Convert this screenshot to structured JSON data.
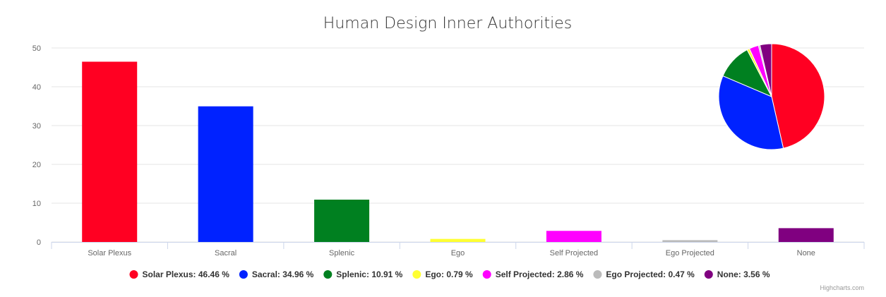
{
  "chart_data": {
    "type": "bar",
    "title": "Human Design Inner Authorities",
    "categories": [
      "Solar Plexus",
      "Sacral",
      "Splenic",
      "Ego",
      "Self Projected",
      "Ego Projected",
      "None"
    ],
    "values": [
      46.46,
      34.96,
      10.91,
      0.79,
      2.86,
      0.47,
      3.56
    ],
    "colors": [
      "#ff0022",
      "#0022ff",
      "#008020",
      "#ffff33",
      "#ff00ff",
      "#bbbbbb",
      "#800080"
    ],
    "ylim": [
      0,
      50
    ],
    "yticks": [
      0,
      10,
      20,
      30,
      40,
      50
    ],
    "xlabel": "",
    "ylabel": "",
    "grid": true,
    "legend": {
      "placement": "bottom",
      "entries": [
        "Solar Plexus: 46.46 %",
        "Sacral: 34.96 %",
        "Splenic: 10.91 %",
        "Ego: 0.79 %",
        "Self Projected: 2.86 %",
        "Ego Projected: 0.47 %",
        "None: 3.56 %"
      ]
    },
    "inset_pie": {
      "type": "pie",
      "placement": "top-right",
      "values": [
        46.46,
        34.96,
        10.91,
        0.79,
        2.86,
        0.47,
        3.56
      ]
    },
    "credits": "Highcharts.com"
  }
}
